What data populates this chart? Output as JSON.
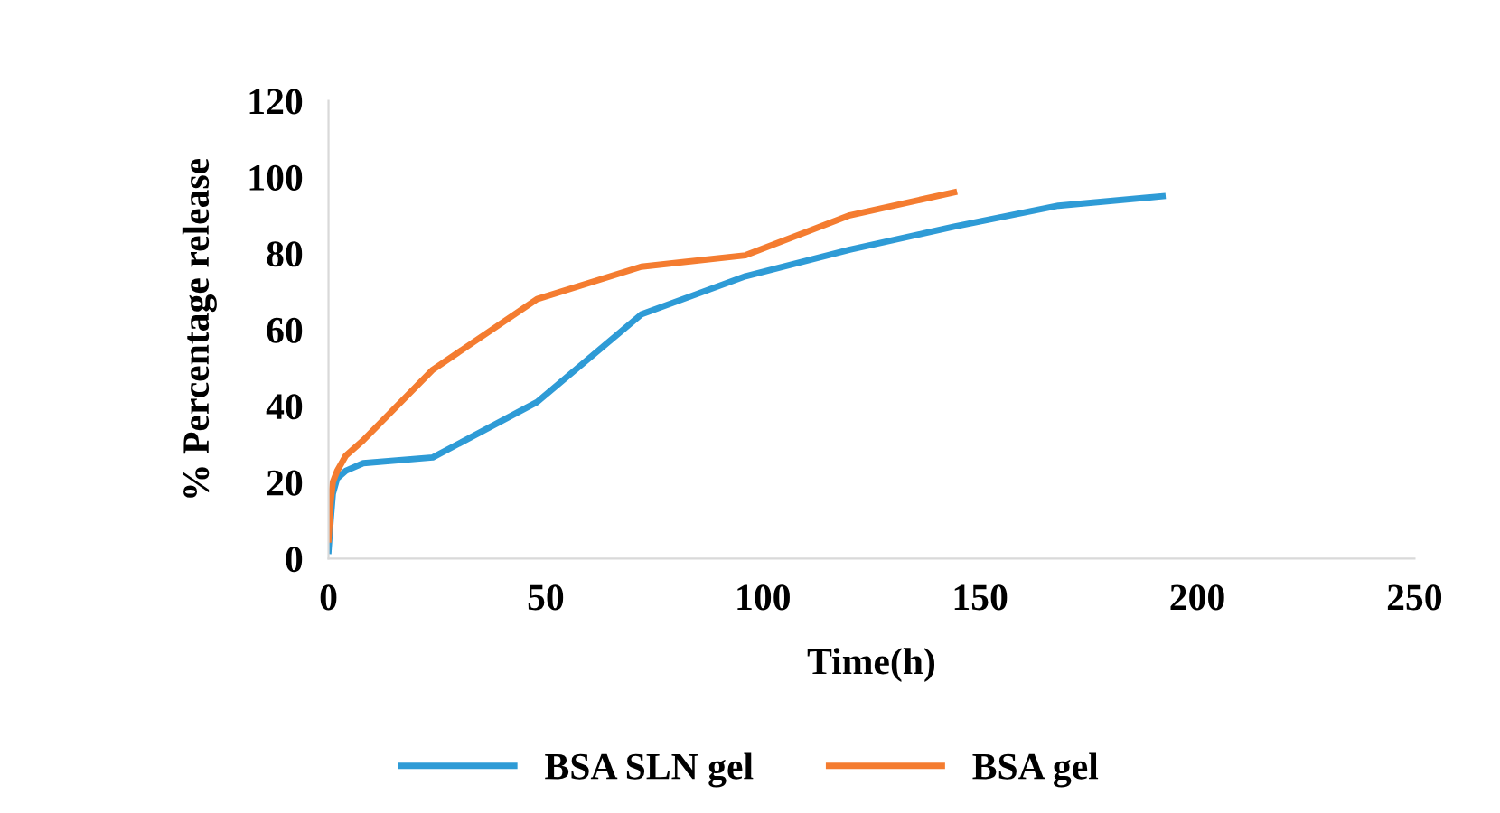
{
  "chart_data": {
    "type": "line",
    "xlabel": "Time(h)",
    "ylabel": "% Percentage release",
    "series": [
      {
        "name": "BSA SLN gel",
        "color": "#2e9bd6",
        "x": [
          0,
          0.5,
          1,
          2,
          4,
          8,
          24,
          48,
          72,
          96,
          120,
          144,
          168,
          192
        ],
        "values": [
          2,
          10,
          17,
          21,
          23,
          25,
          26.5,
          41,
          64,
          74,
          81,
          87,
          92.5,
          95
        ]
      },
      {
        "name": "BSA gel",
        "color": "#f47c30",
        "x": [
          0,
          0.5,
          1,
          2,
          4,
          8,
          24,
          48,
          72,
          96,
          120,
          144
        ],
        "values": [
          5,
          15,
          20,
          23,
          27,
          31,
          49.5,
          68,
          76.5,
          79.5,
          90,
          96
        ]
      }
    ],
    "xlim": [
      0,
      250
    ],
    "xticks": [
      0,
      50,
      100,
      150,
      200,
      250
    ],
    "ylim": [
      0,
      120
    ],
    "yticks": [
      0,
      20,
      40,
      60,
      80,
      100,
      120
    ],
    "grid": false,
    "legend": "bottom",
    "marker": "none",
    "line_style": "solid"
  }
}
